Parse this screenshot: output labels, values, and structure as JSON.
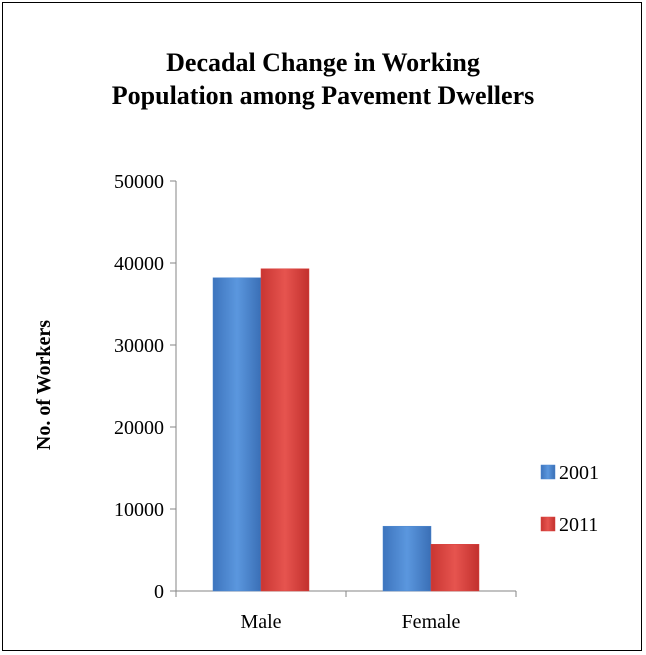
{
  "chart_data": {
    "type": "bar",
    "title_lines": [
      "Decadal Change in Working",
      "Population among Pavement Dwellers"
    ],
    "xlabel": "",
    "ylabel": "No. of Workers",
    "categories": [
      "Male",
      "Female"
    ],
    "series": [
      {
        "name": "2001",
        "values": [
          38200,
          7900
        ],
        "color": "#4a86cf"
      },
      {
        "name": "2011",
        "values": [
          39300,
          5700
        ],
        "color": "#d9433f"
      }
    ],
    "ylim": [
      0,
      50000
    ],
    "yticks": [
      "0",
      "10000",
      "20000",
      "30000",
      "40000",
      "50000"
    ],
    "grid": false,
    "legend_position": "right"
  }
}
